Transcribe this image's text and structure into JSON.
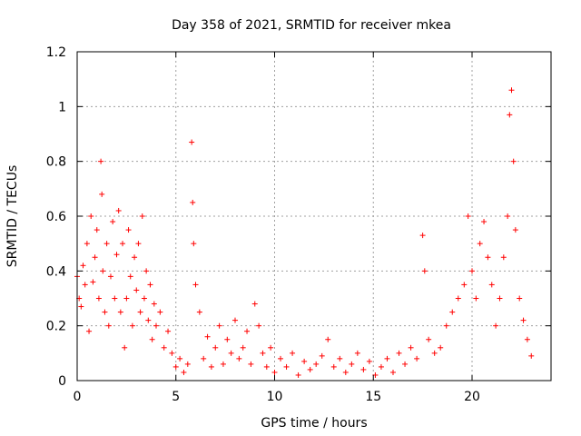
{
  "chart_data": {
    "type": "scatter",
    "title": "Day 358 of 2021, SRMTID for receiver mkea",
    "xlabel": "GPS time / hours",
    "ylabel": "SRMTID / TECUs",
    "xlim": [
      0,
      24
    ],
    "ylim": [
      0,
      1.2
    ],
    "xticks": [
      0,
      5,
      10,
      15,
      20
    ],
    "xtick_labels": [
      "0",
      "5",
      "10",
      "15",
      "20"
    ],
    "yticks": [
      0,
      0.2,
      0.4,
      0.6,
      0.8,
      1,
      1.2
    ],
    "ytick_labels": [
      "0",
      "0.2",
      "0.4",
      "0.6",
      "0.8",
      "1",
      "1.2"
    ],
    "grid": true,
    "marker": "+",
    "color": "#ff0000",
    "series": [
      {
        "name": "SRMTID",
        "x": [
          0.0,
          0.1,
          0.2,
          0.3,
          0.4,
          0.5,
          0.6,
          0.7,
          0.8,
          0.9,
          1.0,
          1.1,
          1.2,
          1.25,
          1.3,
          1.4,
          1.5,
          1.6,
          1.7,
          1.8,
          1.9,
          2.0,
          2.1,
          2.2,
          2.3,
          2.4,
          2.5,
          2.6,
          2.7,
          2.8,
          2.9,
          3.0,
          3.1,
          3.2,
          3.3,
          3.4,
          3.5,
          3.6,
          3.7,
          3.8,
          3.9,
          4.0,
          4.2,
          4.4,
          4.6,
          4.8,
          5.0,
          5.2,
          5.4,
          5.6,
          5.8,
          5.85,
          5.9,
          6.0,
          6.2,
          6.4,
          6.6,
          6.8,
          7.0,
          7.2,
          7.4,
          7.6,
          7.8,
          8.0,
          8.2,
          8.4,
          8.6,
          8.8,
          9.0,
          9.2,
          9.4,
          9.6,
          9.8,
          10.0,
          10.3,
          10.6,
          10.9,
          11.2,
          11.5,
          11.8,
          12.1,
          12.4,
          12.7,
          13.0,
          13.3,
          13.6,
          13.9,
          14.2,
          14.5,
          14.8,
          15.1,
          15.4,
          15.7,
          16.0,
          16.3,
          16.6,
          16.9,
          17.2,
          17.5,
          17.6,
          17.8,
          18.1,
          18.4,
          18.7,
          19.0,
          19.3,
          19.6,
          19.8,
          20.0,
          20.2,
          20.4,
          20.6,
          20.8,
          21.0,
          21.2,
          21.4,
          21.6,
          21.8,
          21.9,
          22.0,
          22.1,
          22.2,
          22.4,
          22.6,
          22.8,
          23.0
        ],
        "y": [
          0.38,
          0.3,
          0.27,
          0.42,
          0.35,
          0.5,
          0.18,
          0.6,
          0.36,
          0.45,
          0.55,
          0.3,
          0.8,
          0.68,
          0.4,
          0.25,
          0.5,
          0.2,
          0.38,
          0.58,
          0.3,
          0.46,
          0.62,
          0.25,
          0.5,
          0.12,
          0.3,
          0.55,
          0.38,
          0.2,
          0.45,
          0.33,
          0.5,
          0.25,
          0.6,
          0.3,
          0.4,
          0.22,
          0.35,
          0.15,
          0.28,
          0.2,
          0.25,
          0.12,
          0.18,
          0.1,
          0.05,
          0.08,
          0.03,
          0.06,
          0.87,
          0.65,
          0.5,
          0.35,
          0.25,
          0.08,
          0.16,
          0.05,
          0.12,
          0.2,
          0.06,
          0.15,
          0.1,
          0.22,
          0.08,
          0.12,
          0.18,
          0.06,
          0.28,
          0.2,
          0.1,
          0.05,
          0.12,
          0.03,
          0.08,
          0.05,
          0.1,
          0.02,
          0.07,
          0.04,
          0.06,
          0.09,
          0.15,
          0.05,
          0.08,
          0.03,
          0.06,
          0.1,
          0.04,
          0.07,
          0.02,
          0.05,
          0.08,
          0.03,
          0.1,
          0.06,
          0.12,
          0.08,
          0.53,
          0.4,
          0.15,
          0.1,
          0.12,
          0.2,
          0.25,
          0.3,
          0.35,
          0.6,
          0.4,
          0.3,
          0.5,
          0.58,
          0.45,
          0.35,
          0.2,
          0.3,
          0.45,
          0.6,
          0.97,
          1.06,
          0.8,
          0.55,
          0.3,
          0.22,
          0.15,
          0.09
        ]
      }
    ]
  }
}
